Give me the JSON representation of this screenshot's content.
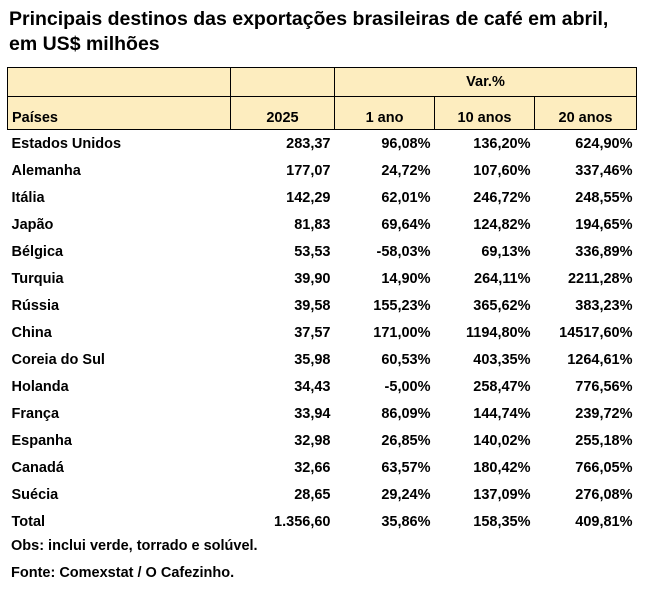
{
  "title": "Principais destinos das exportações brasileiras de café em abril, em US$ milhões",
  "header": {
    "col_country": "Países",
    "col_year": "2025",
    "group_var": "Var.%",
    "col_1y": "1 ano",
    "col_10y": "10 anos",
    "col_20y": "20 anos"
  },
  "rows": [
    {
      "country": "Estados Unidos",
      "value": "283,37",
      "v1": "96,08%",
      "v10": "136,20%",
      "v20": "624,90%"
    },
    {
      "country": "Alemanha",
      "value": "177,07",
      "v1": "24,72%",
      "v10": "107,60%",
      "v20": "337,46%"
    },
    {
      "country": "Itália",
      "value": "142,29",
      "v1": "62,01%",
      "v10": "246,72%",
      "v20": "248,55%"
    },
    {
      "country": "Japão",
      "value": "81,83",
      "v1": "69,64%",
      "v10": "124,82%",
      "v20": "194,65%"
    },
    {
      "country": "Bélgica",
      "value": "53,53",
      "v1": "-58,03%",
      "v10": "69,13%",
      "v20": "336,89%"
    },
    {
      "country": "Turquia",
      "value": "39,90",
      "v1": "14,90%",
      "v10": "264,11%",
      "v20": "2211,28%"
    },
    {
      "country": "Rússia",
      "value": "39,58",
      "v1": "155,23%",
      "v10": "365,62%",
      "v20": "383,23%"
    },
    {
      "country": "China",
      "value": "37,57",
      "v1": "171,00%",
      "v10": "1194,80%",
      "v20": "14517,60%"
    },
    {
      "country": "Coreia do Sul",
      "value": "35,98",
      "v1": "60,53%",
      "v10": "403,35%",
      "v20": "1264,61%"
    },
    {
      "country": "Holanda",
      "value": "34,43",
      "v1": "-5,00%",
      "v10": "258,47%",
      "v20": "776,56%"
    },
    {
      "country": "França",
      "value": "33,94",
      "v1": "86,09%",
      "v10": "144,74%",
      "v20": "239,72%"
    },
    {
      "country": "Espanha",
      "value": "32,98",
      "v1": "26,85%",
      "v10": "140,02%",
      "v20": "255,18%"
    },
    {
      "country": "Canadá",
      "value": "32,66",
      "v1": "63,57%",
      "v10": "180,42%",
      "v20": "766,05%"
    },
    {
      "country": "Suécia",
      "value": "28,65",
      "v1": "29,24%",
      "v10": "137,09%",
      "v20": "276,08%"
    },
    {
      "country": "Total",
      "value": "1.356,60",
      "v1": "35,86%",
      "v10": "158,35%",
      "v20": "409,81%"
    }
  ],
  "notes": {
    "obs": "Obs: inclui verde, torrado e solúvel.",
    "source": "Fonte: Comexstat / O Cafezinho."
  },
  "colors": {
    "header_bg": "#fdedbf",
    "text": "#000000"
  }
}
